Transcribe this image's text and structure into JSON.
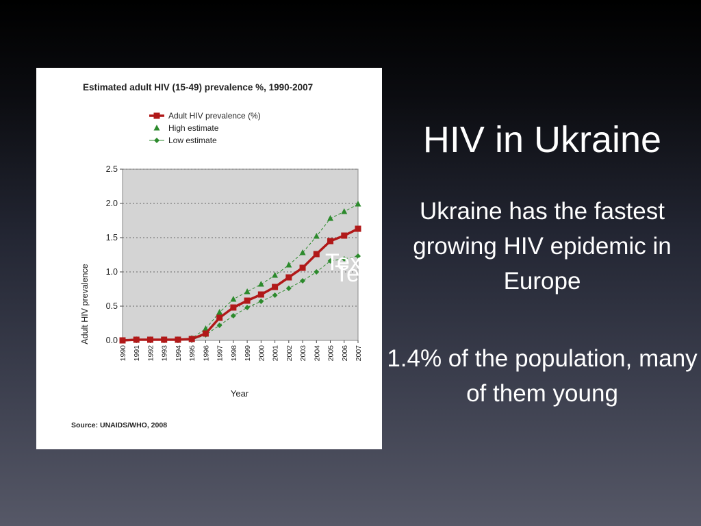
{
  "slide": {
    "title": "HIV in Ukraine",
    "bullets": [
      "Ukraine has the fastest growing HIV epidemic in Europe",
      "1.4% of the population, many of them young"
    ],
    "placeholder_texts": [
      "Text",
      "Text"
    ]
  },
  "chart_data": {
    "type": "line",
    "title": "Estimated adult HIV (15-49) prevalence %, 1990-2007",
    "xlabel": "Year",
    "ylabel": "Adult HIV prevalence",
    "ylim": [
      0,
      2.5
    ],
    "yticks": [
      "0.0",
      "0.5",
      "1.0",
      "1.5",
      "2.0",
      "2.5"
    ],
    "grid": "horizontal dotted",
    "legend_position": "top-left",
    "source": "Source: UNAIDS/WHO, 2008",
    "categories": [
      "1990",
      "1991",
      "1992",
      "1993",
      "1994",
      "1995",
      "1996",
      "1997",
      "1998",
      "1999",
      "2000",
      "2001",
      "2002",
      "2003",
      "2004",
      "2005",
      "2006",
      "2007"
    ],
    "series": [
      {
        "name": "Adult HIV prevalence (%)",
        "color": "#b11919",
        "marker": "square",
        "values": [
          0.0,
          0.01,
          0.01,
          0.01,
          0.01,
          0.02,
          0.1,
          0.33,
          0.48,
          0.58,
          0.67,
          0.78,
          0.92,
          1.06,
          1.26,
          1.45,
          1.53,
          1.63
        ]
      },
      {
        "name": "High estimate",
        "color": "#2c8a2c",
        "marker": "triangle",
        "values": [
          0.0,
          0.01,
          0.01,
          0.01,
          0.01,
          0.03,
          0.17,
          0.41,
          0.6,
          0.71,
          0.82,
          0.95,
          1.1,
          1.28,
          1.52,
          1.78,
          1.88,
          1.99
        ]
      },
      {
        "name": "Low estimate",
        "color": "#2c8a2c",
        "marker": "diamond",
        "values": [
          0.0,
          0.0,
          0.0,
          0.0,
          0.0,
          0.01,
          0.08,
          0.22,
          0.36,
          0.48,
          0.57,
          0.66,
          0.76,
          0.87,
          1.0,
          1.16,
          1.19,
          1.23
        ]
      }
    ],
    "colors": {
      "plot_background": "#d4d4d4",
      "main_series": "#b11919",
      "estimates": "#2c8a2c"
    }
  }
}
